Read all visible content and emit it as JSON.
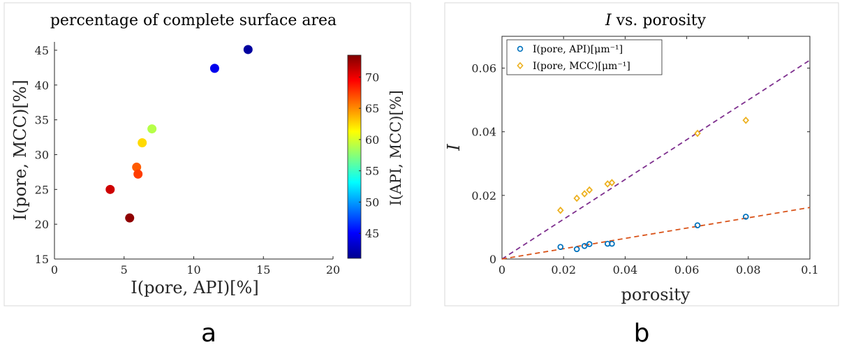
{
  "chart_data": [
    {
      "type": "scatter",
      "panel_label": "a",
      "title": "percentage of complete surface area",
      "xlabel": "I(pore, API)[%]",
      "ylabel": "I(pore, MCC)[%]",
      "xlim": [
        0,
        20
      ],
      "ylim": [
        15,
        47
      ],
      "xticks": [
        0,
        5,
        10,
        15,
        20
      ],
      "yticks": [
        15,
        20,
        25,
        30,
        35,
        40,
        45
      ],
      "colorbar": {
        "label": "I(API, MCC)[%]",
        "range": [
          41,
          73.5
        ],
        "ticks": [
          45,
          50,
          55,
          60,
          65,
          70
        ],
        "colormap": "jet"
      },
      "points": [
        {
          "x": 13.9,
          "y": 45.1,
          "c": 42
        },
        {
          "x": 11.5,
          "y": 42.4,
          "c": 44.5
        },
        {
          "x": 7.0,
          "y": 33.7,
          "c": 59
        },
        {
          "x": 6.3,
          "y": 31.7,
          "c": 62.5
        },
        {
          "x": 5.9,
          "y": 28.2,
          "c": 66.5
        },
        {
          "x": 6.0,
          "y": 27.2,
          "c": 67.5
        },
        {
          "x": 4.0,
          "y": 25.0,
          "c": 71
        },
        {
          "x": 5.4,
          "y": 20.9,
          "c": 73
        }
      ]
    },
    {
      "type": "scatter",
      "panel_label": "b",
      "title": "I vs. porosity",
      "title_parts": {
        "italic": "I",
        "rest": " vs. porosity"
      },
      "xlabel": "porosity",
      "ylabel": "I",
      "xlim": [
        0,
        0.1
      ],
      "ylim": [
        0,
        0.07
      ],
      "xticks": [
        0,
        0.02,
        0.04,
        0.06,
        0.08,
        0.1
      ],
      "yticks": [
        0,
        0.02,
        0.04,
        0.06
      ],
      "legend_position": "top-left",
      "series": [
        {
          "name": "I(pore, API)[μm⁻¹]",
          "color": "#0072BD",
          "marker": "circle",
          "points": [
            [
              0.019,
              0.0038
            ],
            [
              0.0243,
              0.0031
            ],
            [
              0.0268,
              0.0041
            ],
            [
              0.0284,
              0.0047
            ],
            [
              0.0343,
              0.0048
            ],
            [
              0.0357,
              0.0048
            ],
            [
              0.0635,
              0.0106
            ],
            [
              0.0792,
              0.0133
            ]
          ]
        },
        {
          "name": "I(pore, MCC)[μm⁻¹]",
          "color": "#EDB120",
          "marker": "diamond",
          "points": [
            [
              0.019,
              0.0153
            ],
            [
              0.0243,
              0.0191
            ],
            [
              0.0268,
              0.0205
            ],
            [
              0.0284,
              0.0217
            ],
            [
              0.0343,
              0.0236
            ],
            [
              0.0357,
              0.024
            ],
            [
              0.0635,
              0.0395
            ],
            [
              0.0792,
              0.0436
            ]
          ]
        }
      ],
      "fit_lines": [
        {
          "color": "#7E2F8E",
          "style": "dashed",
          "from": [
            0,
            0
          ],
          "to": [
            0.1,
            0.0625
          ]
        },
        {
          "color": "#D95319",
          "style": "dashed",
          "from": [
            0,
            0
          ],
          "to": [
            0.1,
            0.0162
          ]
        }
      ]
    }
  ]
}
